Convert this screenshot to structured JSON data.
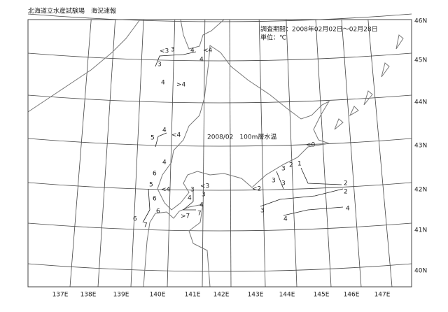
{
  "header": {
    "title": "北海道立水産試験場　海況速報"
  },
  "map": {
    "period": "調査期間：2008年02月02日～02月28日",
    "unit": "単位：℃",
    "caption": "2008/02　100m層水温",
    "lat_labels": [
      "46N",
      "45N",
      "44N",
      "43N",
      "42N",
      "41N",
      "40N"
    ],
    "lon_labels": [
      "137E",
      "138E",
      "139E",
      "140E",
      "141E",
      "142E",
      "143E",
      "144E",
      "145E",
      "146E",
      "147E"
    ],
    "contour_labels": [
      "<3",
      "3",
      "4",
      "<4",
      "4",
      "3",
      "4",
      ">4",
      "5",
      "4",
      "<4",
      "4",
      "6",
      "5",
      "<4",
      "6",
      "6",
      "6",
      "7",
      "3",
      "<3",
      "3",
      "4",
      "4",
      "7",
      ">7",
      "<0",
      "3",
      "2",
      "1",
      "3",
      "3",
      "<2",
      "2",
      "2",
      "3",
      "4",
      "4"
    ]
  }
}
